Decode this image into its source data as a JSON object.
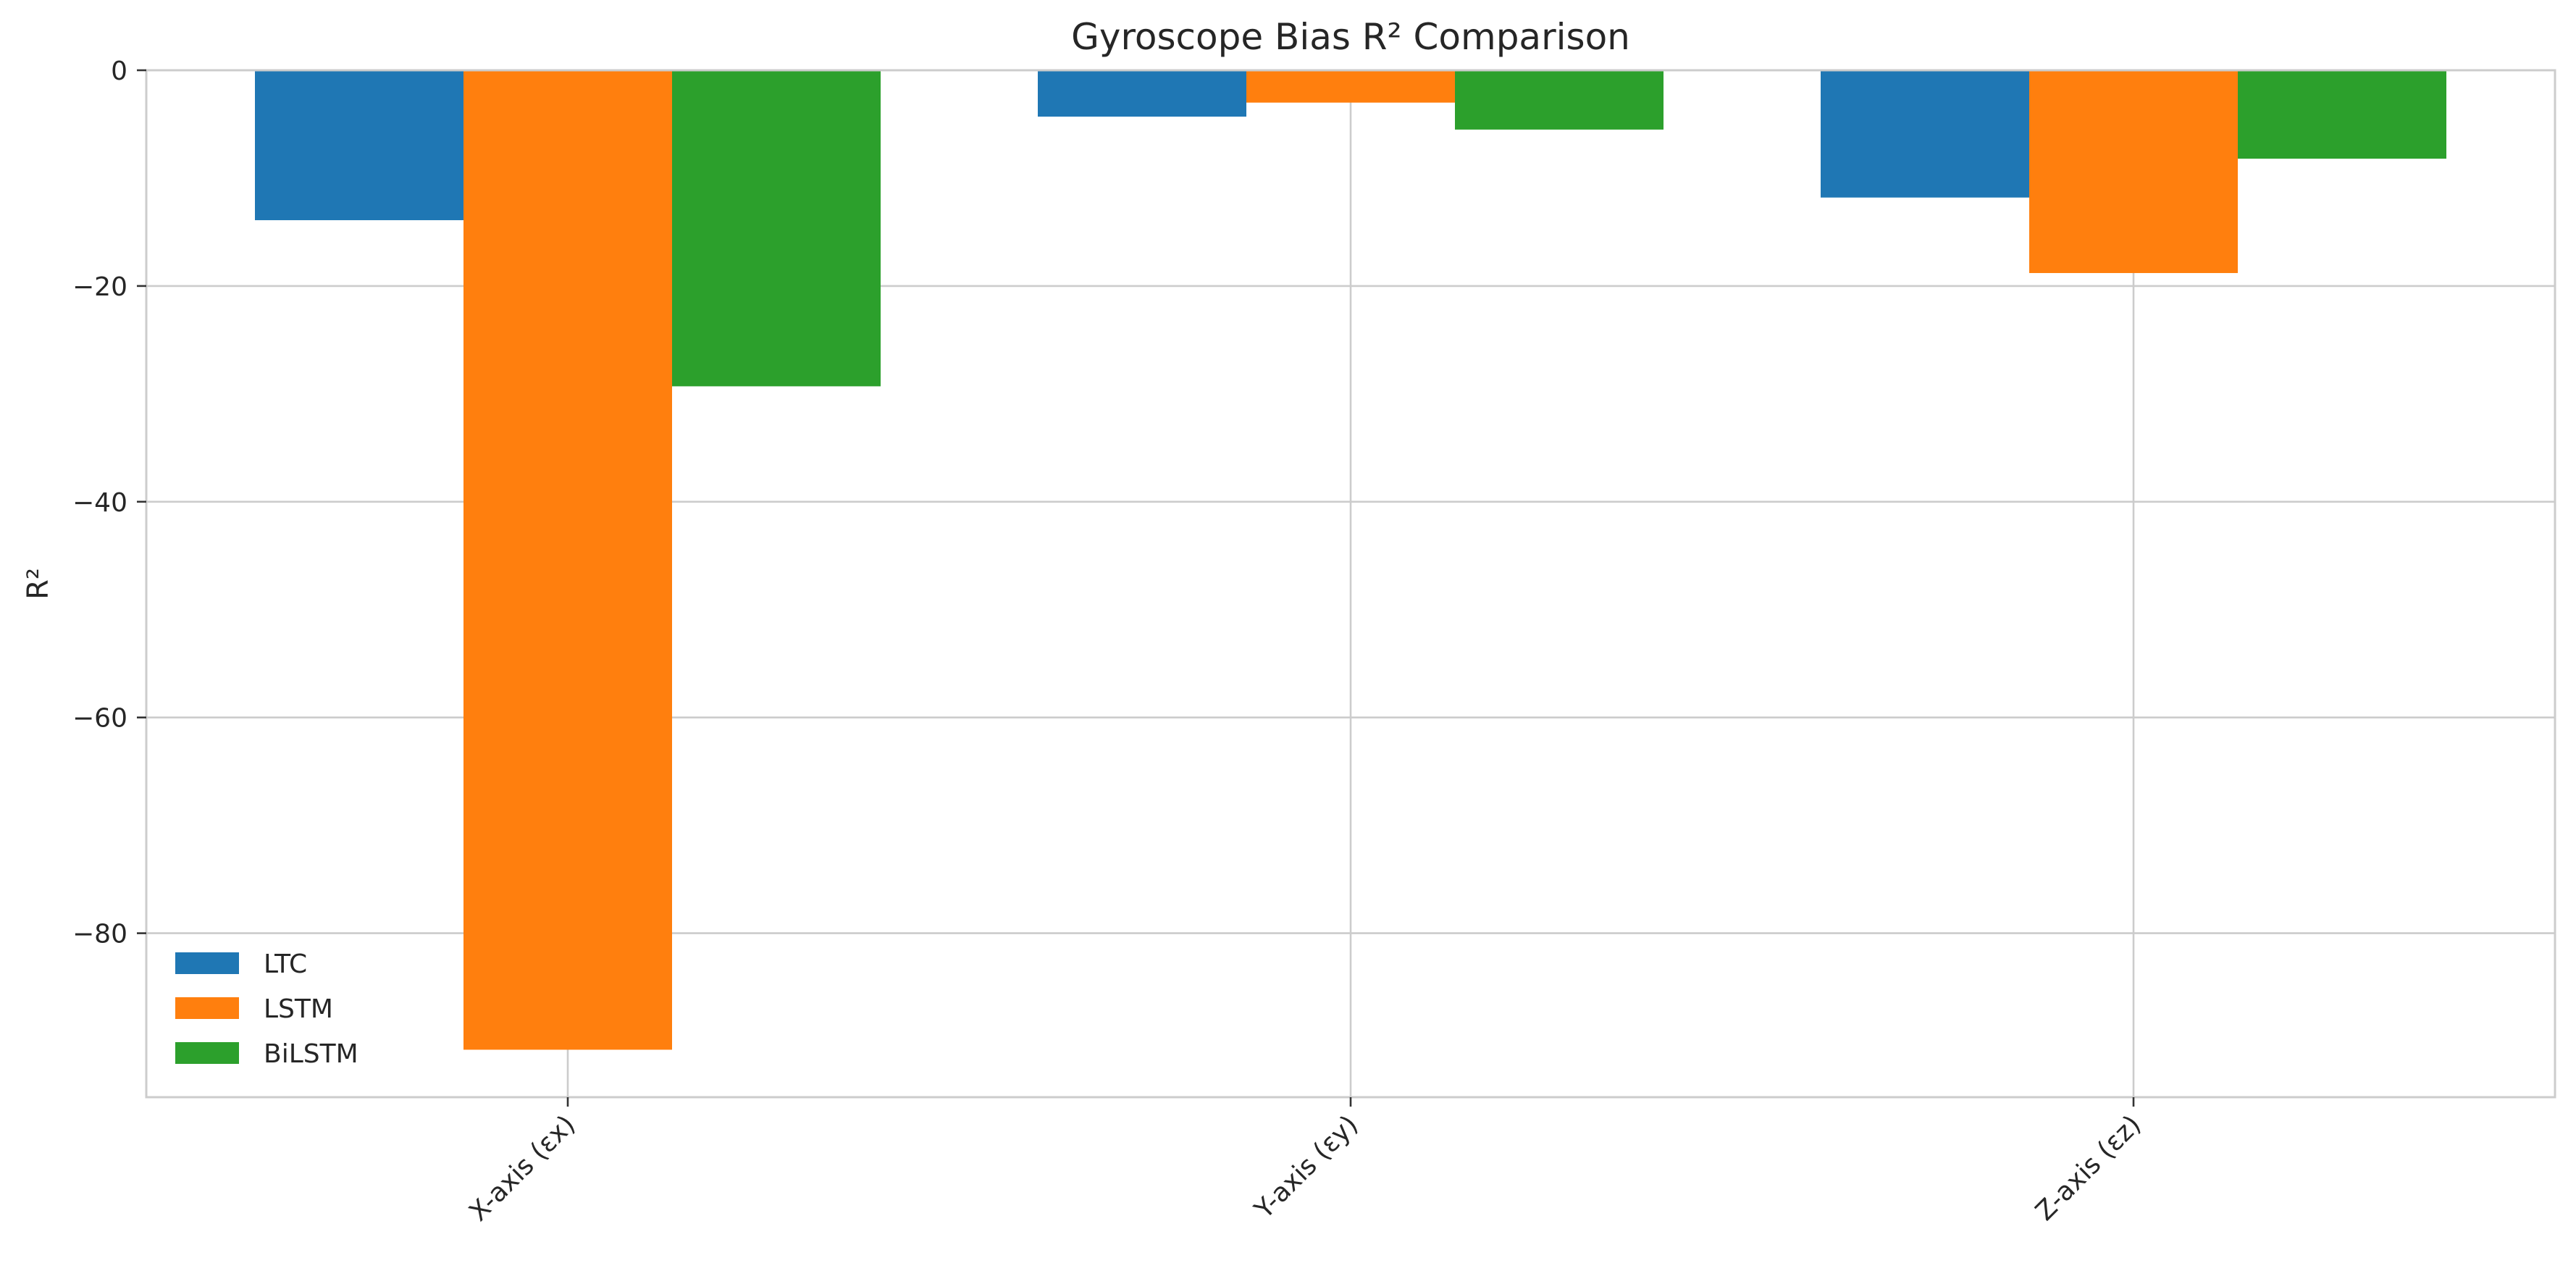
{
  "chart_data": {
    "type": "bar",
    "title": "Gyroscope Bias R² Comparison",
    "xlabel": "",
    "ylabel": "R²",
    "categories": [
      "X-axis (εx)",
      "Y-axis (εy)",
      "Z-axis (εz)"
    ],
    "series": [
      {
        "name": "LTC",
        "color": "#1f77b4",
        "values": [
          -13.9,
          -4.3,
          -11.8
        ]
      },
      {
        "name": "LSTM",
        "color": "#ff7f0e",
        "values": [
          -90.8,
          -3.0,
          -18.8
        ]
      },
      {
        "name": "BiLSTM",
        "color": "#2ca02c",
        "values": [
          -29.3,
          -5.5,
          -8.2
        ]
      }
    ],
    "ylim": [
      -95.2,
      0
    ],
    "yticks": [
      0,
      -20,
      -40,
      -60,
      -80
    ],
    "ytick_labels": [
      "0",
      "−20",
      "−40",
      "−60",
      "−80"
    ],
    "grid": true,
    "legend_position": "bottom-left"
  }
}
